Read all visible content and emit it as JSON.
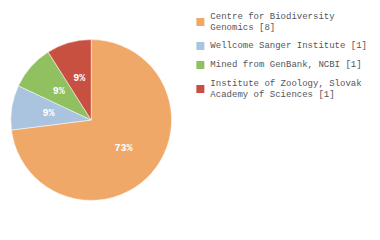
{
  "chart_data": {
    "type": "pie",
    "categories": [
      "Centre for Biodiversity\nGenomics [8]",
      "Wellcome Sanger Institute [1]",
      "Mined from GenBank, NCBI [1]",
      "Institute of Zoology, Slovak\nAcademy of Sciences [1]"
    ],
    "values": [
      73,
      9,
      9,
      9
    ],
    "value_labels": [
      "73%",
      "9%",
      "9%",
      "9%"
    ],
    "colors": [
      "#f0a868",
      "#aac4e0",
      "#90c060",
      "#c85040"
    ],
    "data_labels": true,
    "legend": "upper right"
  }
}
